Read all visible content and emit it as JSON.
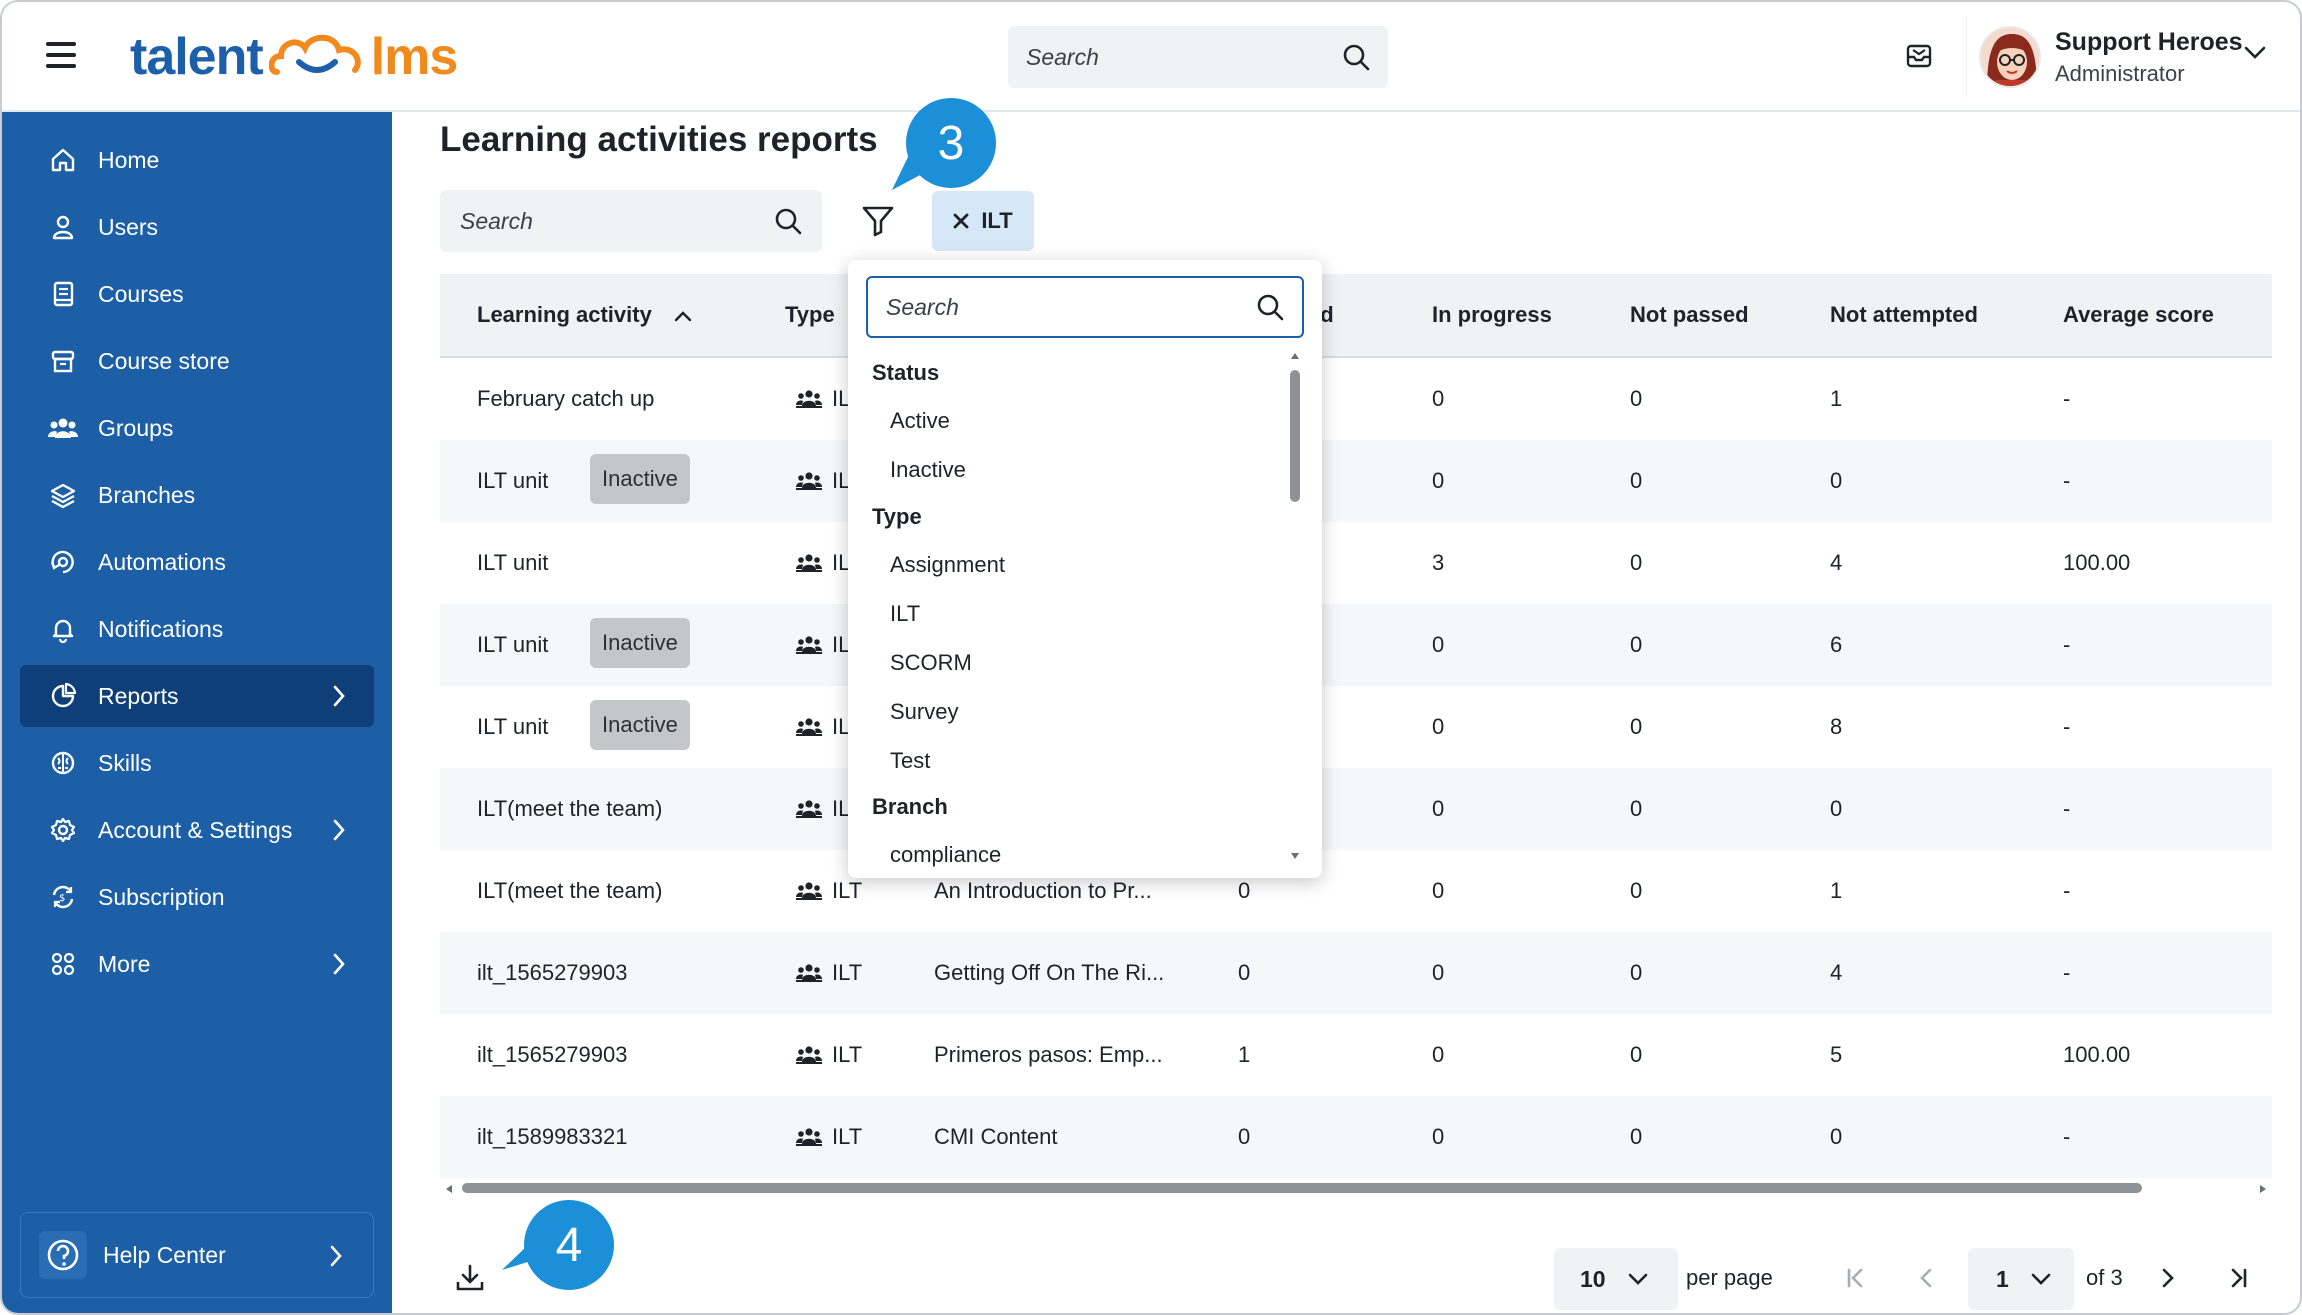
{
  "header": {
    "logo_left": "talent",
    "logo_right": "lms",
    "search_placeholder": "Search",
    "user_name": "Support Heroes",
    "user_role": "Administrator"
  },
  "sidebar": {
    "items": [
      {
        "label": "Home",
        "icon": "home-icon"
      },
      {
        "label": "Users",
        "icon": "user-icon"
      },
      {
        "label": "Courses",
        "icon": "book-icon"
      },
      {
        "label": "Course store",
        "icon": "store-icon"
      },
      {
        "label": "Groups",
        "icon": "groups-icon"
      },
      {
        "label": "Branches",
        "icon": "layers-icon"
      },
      {
        "label": "Automations",
        "icon": "automation-icon"
      },
      {
        "label": "Notifications",
        "icon": "bell-icon"
      },
      {
        "label": "Reports",
        "icon": "pie-chart-icon",
        "active": true
      },
      {
        "label": "Skills",
        "icon": "brain-icon"
      },
      {
        "label": "Account & Settings",
        "icon": "gear-icon"
      },
      {
        "label": "Subscription",
        "icon": "subscription-icon"
      },
      {
        "label": "More",
        "icon": "grid-icon"
      }
    ],
    "help_label": "Help Center"
  },
  "main": {
    "title": "Learning activities reports",
    "search_placeholder": "Search",
    "filter_chip": "ILT",
    "callout_3": "3",
    "callout_4": "4"
  },
  "table": {
    "columns": [
      "Learning activity",
      "Type",
      "",
      "ed",
      "In progress",
      "Not passed",
      "Not attempted",
      "Average score"
    ],
    "rows": [
      {
        "activity": "February catch up",
        "badge": "",
        "type": "ILT",
        "course": "",
        "completed": "",
        "in_progress": "0",
        "not_passed": "0",
        "not_attempted": "1",
        "avg": "-"
      },
      {
        "activity": "ILT unit",
        "badge": "Inactive",
        "type": "ILT",
        "course": "",
        "completed": "",
        "in_progress": "0",
        "not_passed": "0",
        "not_attempted": "0",
        "avg": "-"
      },
      {
        "activity": "ILT unit",
        "badge": "",
        "type": "ILT",
        "course": "",
        "completed": "",
        "in_progress": "3",
        "not_passed": "0",
        "not_attempted": "4",
        "avg": "100.00"
      },
      {
        "activity": "ILT unit",
        "badge": "Inactive",
        "type": "ILT",
        "course": "",
        "completed": "",
        "in_progress": "0",
        "not_passed": "0",
        "not_attempted": "6",
        "avg": "-"
      },
      {
        "activity": "ILT unit",
        "badge": "Inactive",
        "type": "ILT",
        "course": "",
        "completed": "",
        "in_progress": "0",
        "not_passed": "0",
        "not_attempted": "8",
        "avg": "-"
      },
      {
        "activity": "ILT(meet the team)",
        "badge": "",
        "type": "ILT",
        "course": "",
        "completed": "",
        "in_progress": "0",
        "not_passed": "0",
        "not_attempted": "0",
        "avg": "-"
      },
      {
        "activity": "ILT(meet the team)",
        "badge": "",
        "type": "ILT",
        "course": "An Introduction to Pr...",
        "completed": "0",
        "in_progress": "0",
        "not_passed": "0",
        "not_attempted": "1",
        "avg": "-"
      },
      {
        "activity": "ilt_1565279903",
        "badge": "",
        "type": "ILT",
        "course": "Getting Off On The Ri...",
        "completed": "0",
        "in_progress": "0",
        "not_passed": "0",
        "not_attempted": "4",
        "avg": "-"
      },
      {
        "activity": "ilt_1565279903",
        "badge": "",
        "type": "ILT",
        "course": "Primeros pasos: Emp...",
        "completed": "1",
        "in_progress": "0",
        "not_passed": "0",
        "not_attempted": "5",
        "avg": "100.00"
      },
      {
        "activity": "ilt_1589983321",
        "badge": "",
        "type": "ILT",
        "course": "CMI Content",
        "completed": "0",
        "in_progress": "0",
        "not_passed": "0",
        "not_attempted": "0",
        "avg": "-"
      }
    ]
  },
  "dropdown": {
    "search_placeholder": "Search",
    "groups": [
      {
        "label": "Status",
        "options": [
          "Active",
          "Inactive"
        ]
      },
      {
        "label": "Type",
        "options": [
          "Assignment",
          "ILT",
          "SCORM",
          "Survey",
          "Test"
        ]
      },
      {
        "label": "Branch",
        "options": [
          "compliance"
        ]
      }
    ]
  },
  "footer": {
    "per_page_value": "10",
    "per_page_label": "per page",
    "page_value": "1",
    "of_label": "of 3"
  },
  "colors": {
    "sidebar": "#1c5fa6",
    "sidebar_active": "#0f3f78",
    "chip": "#d6e8f8",
    "callout": "#1b8fd8",
    "brand_orange": "#f08a1c"
  }
}
